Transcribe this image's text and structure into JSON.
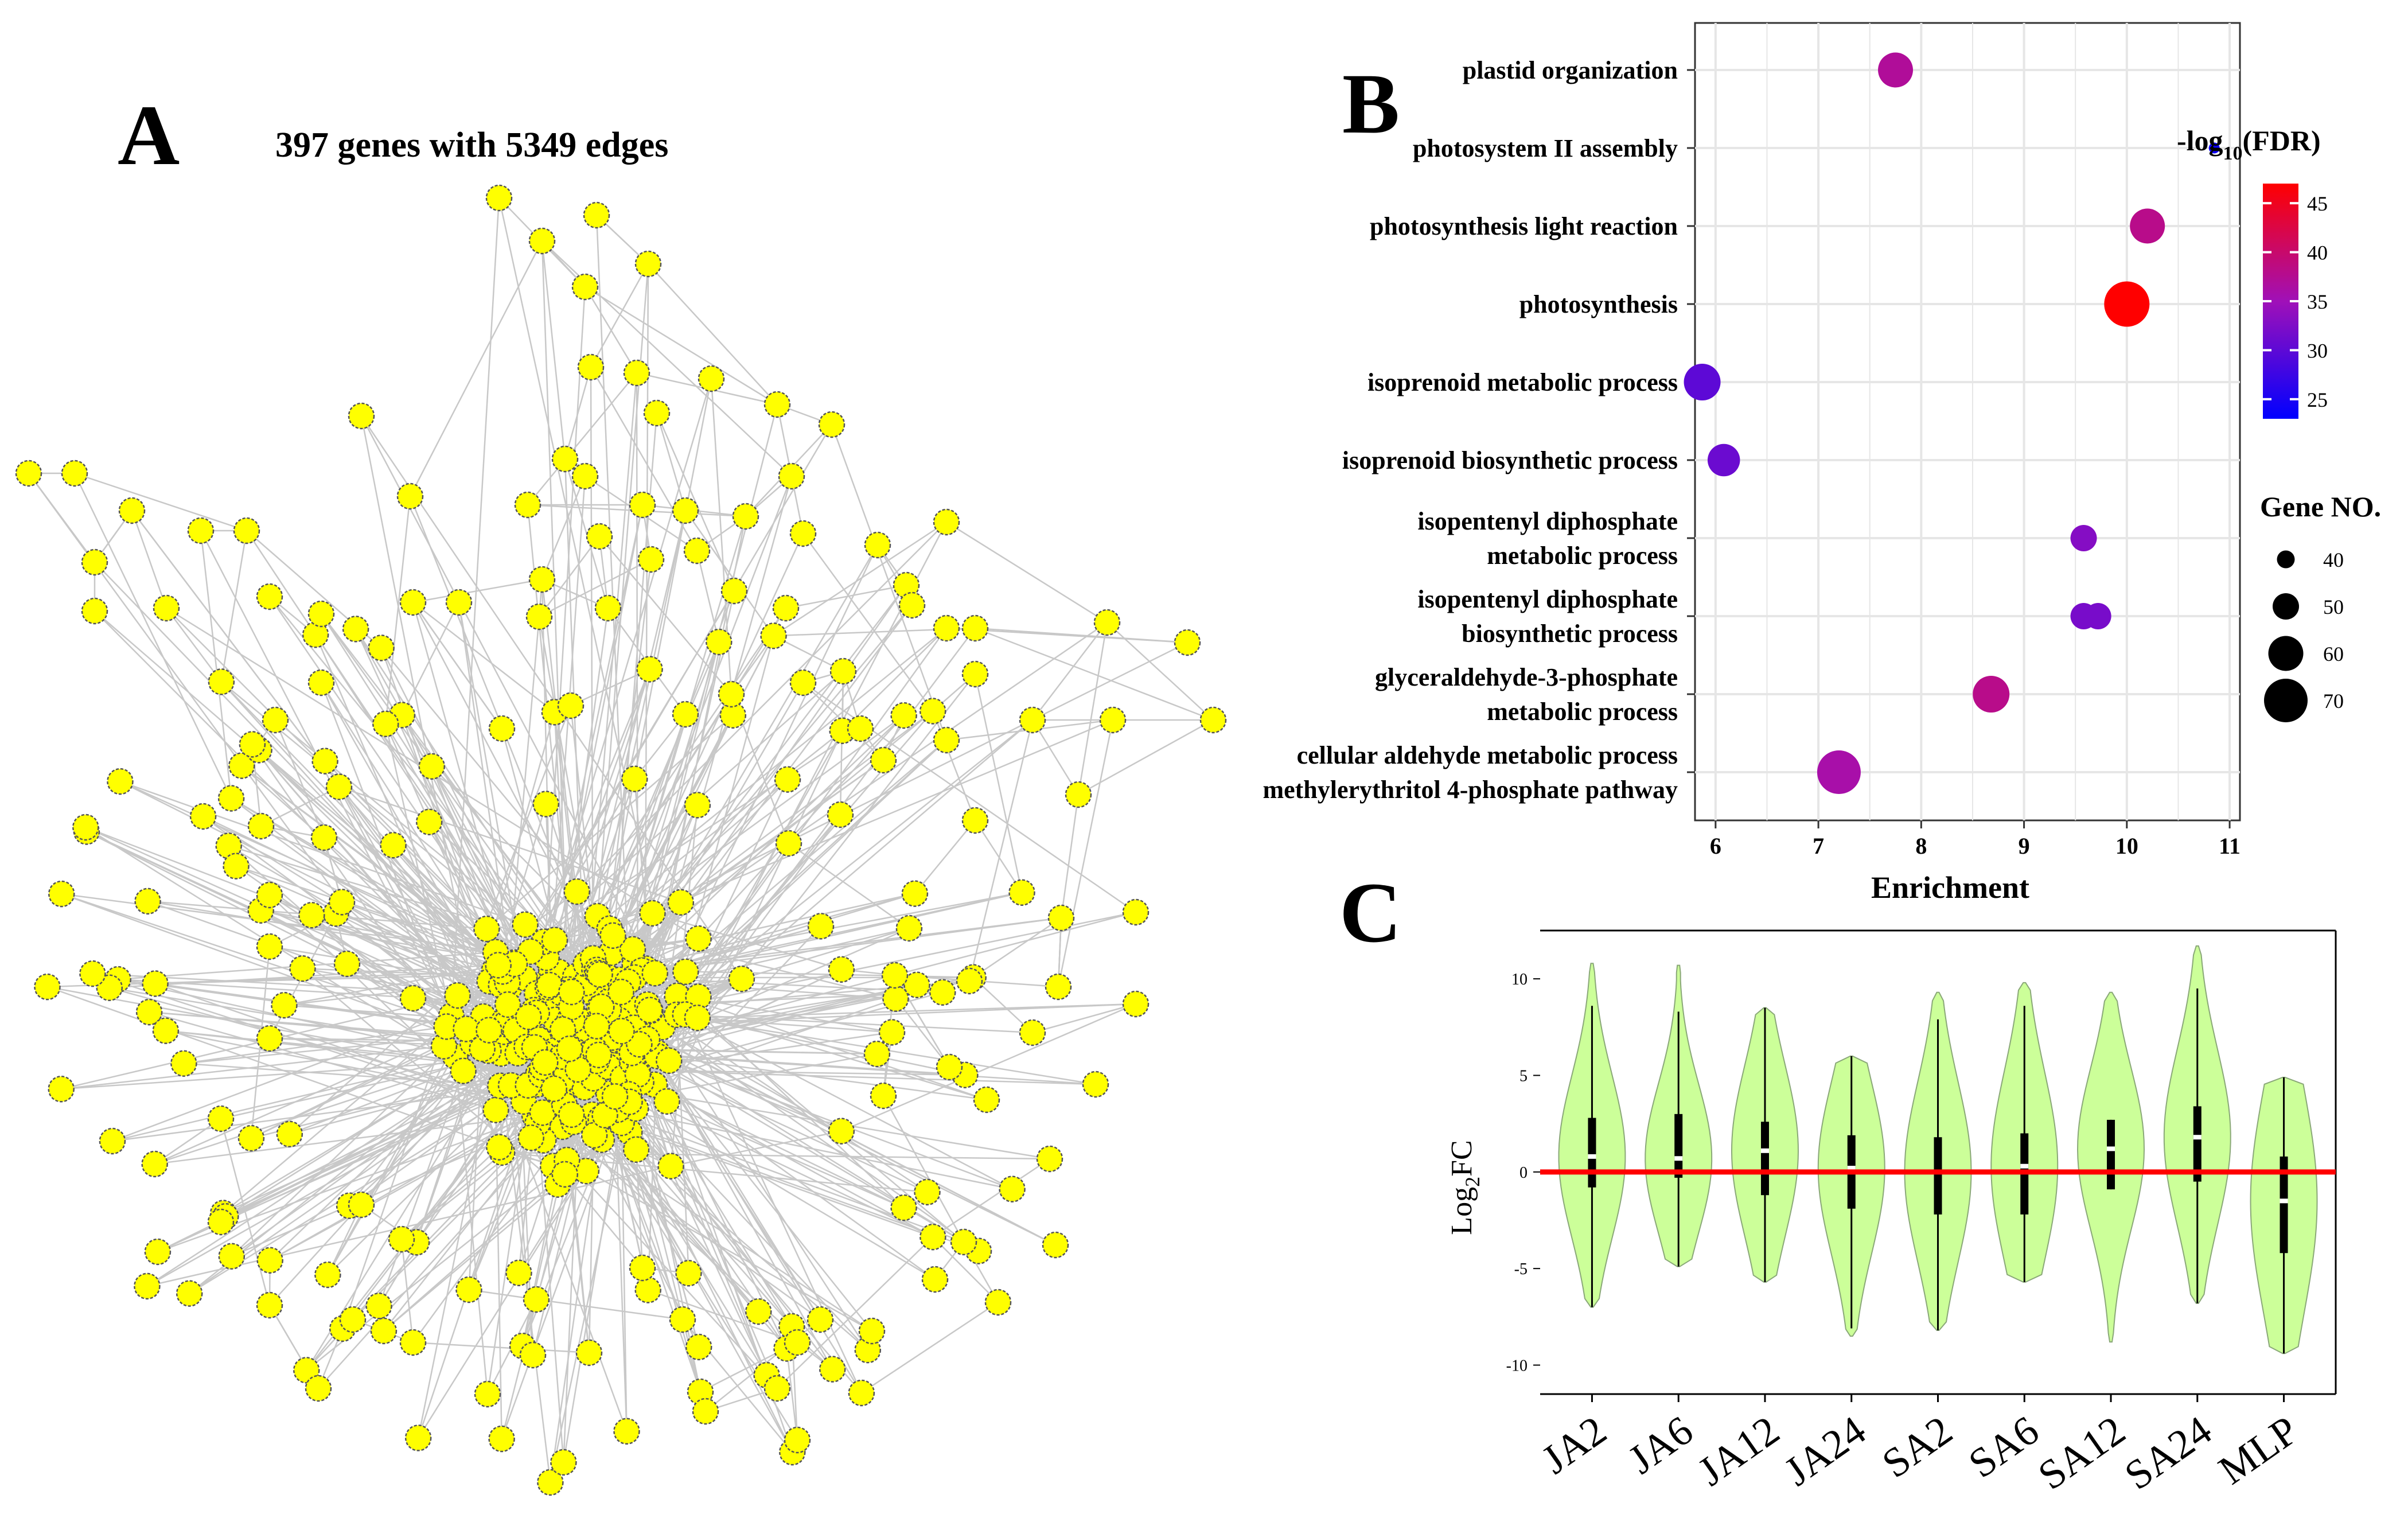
{
  "panel_a": {
    "letter": "A",
    "title": "397 genes with 5349 edges",
    "node_color": "#ffff00",
    "edge_color": "#c8c8c8"
  },
  "panel_b": {
    "letter": "B",
    "chart_data": {
      "type": "scatter",
      "xlabel": "Enrichment",
      "xlim": [
        5.8,
        11.1
      ],
      "xticks": [
        6,
        7,
        8,
        9,
        10,
        11
      ],
      "categories": [
        [
          "plastid organization"
        ],
        [
          "photosystem II assembly"
        ],
        [
          "photosynthesis light reaction"
        ],
        [
          "photosynthesis"
        ],
        [
          "isoprenoid metabolic process"
        ],
        [
          "isoprenoid biosynthetic process"
        ],
        [
          "isopentenyl diphosphate",
          "metabolic process"
        ],
        [
          "isopentenyl diphosphate",
          "biosynthetic process"
        ],
        [
          "glyceraldehyde-3-phosphate",
          "metabolic process"
        ],
        [
          "cellular aldehyde metabolic process",
          "methylerythritol 4-phosphate pathway"
        ]
      ],
      "points": [
        {
          "row": 0,
          "enrichment": 7.75,
          "fdr": 37,
          "gene_no": 60
        },
        {
          "row": 1,
          "enrichment": 10.85,
          "fdr": 24,
          "gene_no": 32
        },
        {
          "row": 2,
          "enrichment": 10.2,
          "fdr": 38,
          "gene_no": 60
        },
        {
          "row": 3,
          "enrichment": 10.0,
          "fdr": 47,
          "gene_no": 72
        },
        {
          "row": 4,
          "enrichment": 5.87,
          "fdr": 30,
          "gene_no": 62
        },
        {
          "row": 5,
          "enrichment": 6.08,
          "fdr": 31,
          "gene_no": 57
        },
        {
          "row": 6,
          "enrichment": 9.58,
          "fdr": 33,
          "gene_no": 50
        },
        {
          "row": 7,
          "enrichment": 9.58,
          "fdr": 32,
          "gene_no": 50
        },
        {
          "row": 7,
          "enrichment": 9.72,
          "fdr": 32,
          "gene_no": 50
        },
        {
          "row": 8,
          "enrichment": 8.68,
          "fdr": 38,
          "gene_no": 62
        },
        {
          "row": 9,
          "enrichment": 7.2,
          "fdr": 36,
          "gene_no": 70
        }
      ],
      "color_legend": {
        "title_prefix": "-log",
        "title_sub": "10",
        "title_suffix": "(FDR)",
        "ticks": [
          25,
          30,
          35,
          40,
          45
        ],
        "range": [
          23,
          47
        ],
        "low_color": "#0000ff",
        "mid_color": "#a010b8",
        "high_color": "#ff0000"
      },
      "size_legend": {
        "title": "Gene NO.",
        "values": [
          40,
          50,
          60,
          70
        ]
      }
    }
  },
  "panel_c": {
    "letter": "C",
    "chart_data": {
      "type": "violin",
      "ylabel_main": "Log",
      "ylabel_sub": "2",
      "ylabel_suffix": "FC",
      "ylim": [
        -11.5,
        12.5
      ],
      "yticks": [
        10,
        5,
        0,
        -5,
        -10
      ],
      "reference_line": 0,
      "reference_color": "#ff0000",
      "fill_color": "#ccff99",
      "categories": [
        "JA2",
        "JA6",
        "JA12",
        "JA24",
        "SA2",
        "SA6",
        "SA12",
        "SA24",
        "MLP"
      ],
      "series": [
        {
          "name": "JA2",
          "min": -7.0,
          "q1": -0.8,
          "median": 0.8,
          "q3": 2.8,
          "max": 10.8,
          "whisker_min": -7.0,
          "whisker_max": 8.6
        },
        {
          "name": "JA6",
          "min": -4.9,
          "q1": -0.3,
          "median": 0.7,
          "q3": 3.0,
          "max": 10.7,
          "whisker_min": -4.9,
          "whisker_max": 8.3
        },
        {
          "name": "JA12",
          "min": -5.7,
          "q1": -1.2,
          "median": 1.1,
          "q3": 2.6,
          "max": 8.5,
          "whisker_min": -5.7,
          "whisker_max": 8.5
        },
        {
          "name": "JA24",
          "min": -8.5,
          "q1": -1.9,
          "median": 0.2,
          "q3": 1.9,
          "max": 6.0,
          "whisker_min": -8.1,
          "whisker_max": 6.0
        },
        {
          "name": "SA2",
          "min": -8.2,
          "q1": -2.2,
          "median": 0.0,
          "q3": 1.8,
          "max": 9.3,
          "whisker_min": -8.2,
          "whisker_max": 7.9
        },
        {
          "name": "SA6",
          "min": -5.7,
          "q1": -2.2,
          "median": 0.3,
          "q3": 2.0,
          "max": 9.8,
          "whisker_min": -5.7,
          "whisker_max": 8.6
        },
        {
          "name": "SA12",
          "min": -8.8,
          "q1": -0.9,
          "median": 1.2,
          "q3": 2.7,
          "max": 9.3,
          "whisker_min": -0.9,
          "whisker_max": 2.7
        },
        {
          "name": "SA24",
          "min": -6.8,
          "q1": -0.5,
          "median": 1.8,
          "q3": 3.4,
          "max": 11.7,
          "whisker_min": -6.8,
          "whisker_max": 9.5
        },
        {
          "name": "MLP",
          "min": -9.4,
          "q1": -4.2,
          "median": -1.5,
          "q3": 0.8,
          "max": 4.9,
          "whisker_min": -9.4,
          "whisker_max": 4.9
        }
      ]
    }
  }
}
